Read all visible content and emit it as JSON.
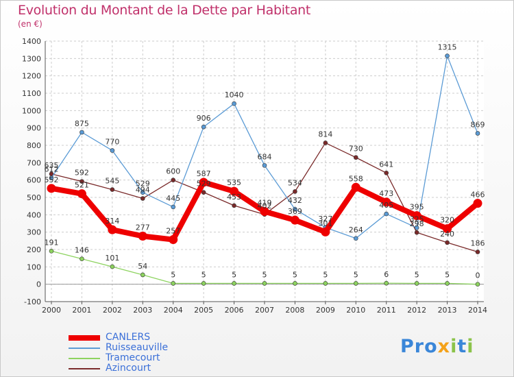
{
  "title": "Evolution du Montant de la Dette par Habitant",
  "unit": "(en €)",
  "logo_text": "Proxiti",
  "chart_data": {
    "type": "line",
    "title": "Evolution du Montant de la Dette par Habitant",
    "subtitle": "(en €)",
    "xlabel": "",
    "ylabel": "",
    "x": [
      "2000",
      "2001",
      "2002",
      "2003",
      "2004",
      "2005",
      "2006",
      "2007",
      "2008",
      "2009",
      "2010",
      "2011",
      "2012",
      "2013",
      "2014"
    ],
    "ylim": [
      -100,
      1400
    ],
    "yticks": [
      -100,
      0,
      100,
      200,
      300,
      400,
      500,
      600,
      700,
      800,
      900,
      1000,
      1100,
      1200,
      1300,
      1400
    ],
    "grid": true,
    "legend_position": "bottom-left",
    "series": [
      {
        "name": "CANLERS",
        "color": "#ee0000",
        "values": [
          552,
          521,
          314,
          277,
          257,
          587,
          535,
          419,
          369,
          301,
          558,
          473,
          395,
          320,
          466
        ]
      },
      {
        "name": "Ruisseauville",
        "color": "#5b9bd5",
        "values": [
          612,
          875,
          770,
          529,
          445,
          906,
          1040,
          684,
          432,
          327,
          264,
          405,
          325,
          1315,
          869
        ]
      },
      {
        "name": "Tramecourt",
        "color": "#8dd35f",
        "values": [
          191,
          146,
          101,
          54,
          5,
          5,
          5,
          5,
          5,
          5,
          5,
          6,
          5,
          5,
          0
        ]
      },
      {
        "name": "Azincourt",
        "color": "#7a2a2a",
        "values": [
          635,
          592,
          545,
          494,
          600,
          529,
          453,
          402,
          534,
          814,
          730,
          641,
          298,
          240,
          186
        ]
      }
    ],
    "data_labels": [
      [
        "552",
        "521",
        "314",
        "277",
        "257",
        "587",
        "535",
        "419",
        "369",
        "301",
        "558",
        "473",
        "395",
        "320",
        "466"
      ],
      [
        "612",
        "875",
        "770",
        "529",
        "445",
        "906",
        "1040",
        "684",
        "432",
        "327",
        "264",
        "405",
        "325",
        "1315",
        "869"
      ],
      [
        "191",
        "146",
        "101",
        "54",
        "5",
        "5",
        "5",
        "5",
        "5",
        "5",
        "5",
        "6",
        "5",
        "5",
        "0"
      ],
      [
        "635",
        "592",
        "545",
        "494",
        "600",
        "529",
        "453",
        "402",
        "534",
        "814",
        "730",
        "641",
        "298",
        "240",
        "186"
      ]
    ]
  }
}
